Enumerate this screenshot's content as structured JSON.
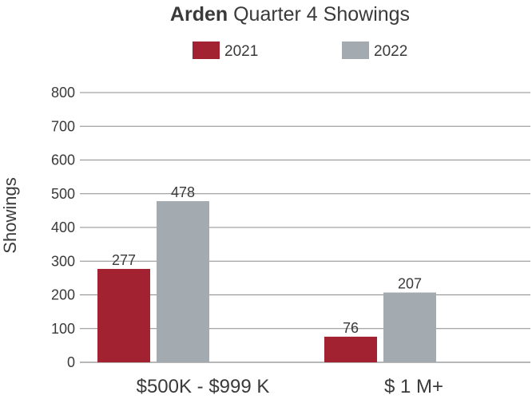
{
  "chart_data": {
    "type": "bar",
    "title_bold": "Arden",
    "title_rest": " Quarter 4 Showings",
    "ylabel": "Showings",
    "xlabel": "",
    "categories": [
      "$500K - $999 K",
      "$ 1 M+"
    ],
    "series": [
      {
        "name": "2021",
        "values": [
          277,
          76
        ],
        "labels": [
          "277",
          "76"
        ],
        "color": "#a32232"
      },
      {
        "name": "2022",
        "values": [
          478,
          207
        ],
        "labels": [
          "478",
          "207"
        ],
        "color": "#a4abb0"
      }
    ],
    "ylim": [
      0,
      800
    ],
    "yticks": [
      0,
      100,
      200,
      300,
      400,
      500,
      600,
      700,
      800
    ],
    "grid": true,
    "legend_position": "top-center"
  }
}
